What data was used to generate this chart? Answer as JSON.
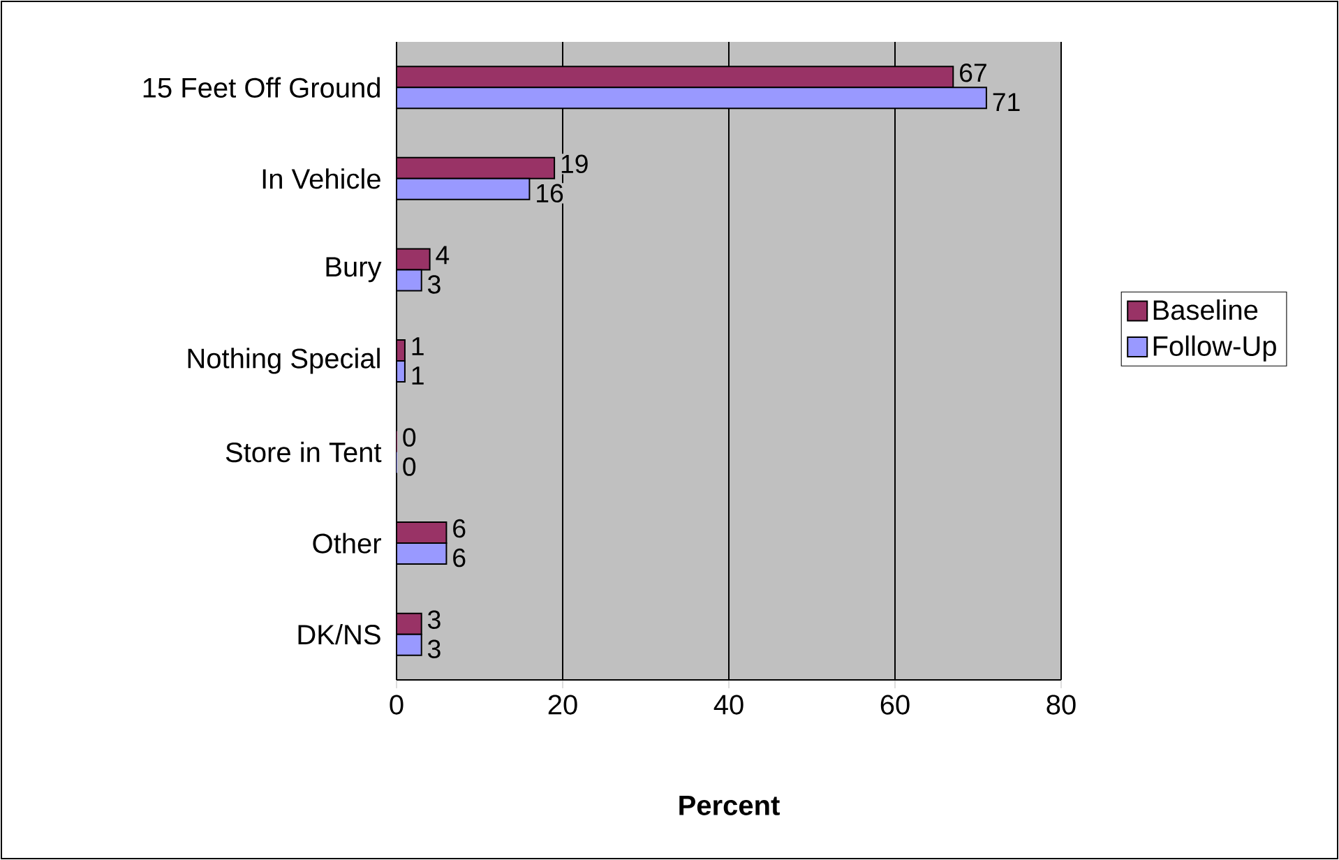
{
  "chart_data": {
    "type": "bar",
    "orientation": "horizontal",
    "xlabel": "Percent",
    "categories": [
      "15 Feet Off Ground",
      "In Vehicle",
      "Bury",
      "Nothing Special",
      "Store in Tent",
      "Other",
      "DK/NS"
    ],
    "series": [
      {
        "name": "Baseline",
        "color": "#993366",
        "values": [
          67,
          19,
          4,
          1,
          0,
          6,
          3
        ]
      },
      {
        "name": "Follow-Up",
        "color": "#9999ff",
        "values": [
          71,
          16,
          3,
          1,
          0,
          6,
          3
        ]
      }
    ],
    "xlim": [
      0,
      80
    ],
    "xticks": [
      0,
      20,
      40,
      60,
      80
    ],
    "grid": "x",
    "legend": "right",
    "data_labels": true
  }
}
